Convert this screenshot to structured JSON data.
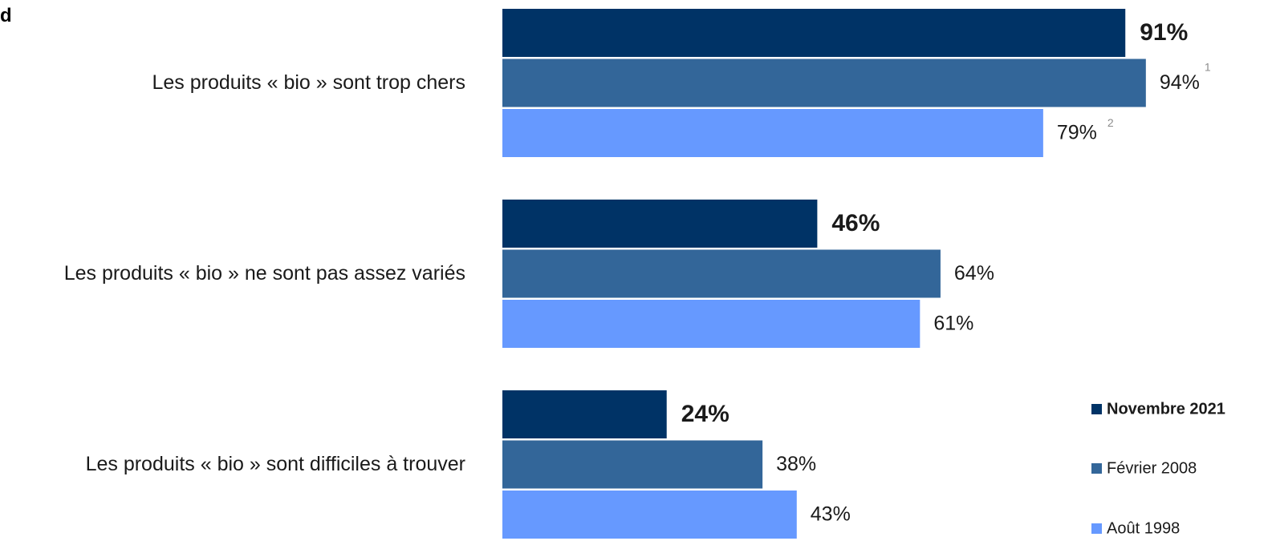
{
  "corner_text": "d",
  "colors": {
    "series": [
      "#003366",
      "#336699",
      "#6699ff"
    ],
    "bold_label": "#0d2d6b"
  },
  "chart_data": {
    "type": "bar",
    "orientation": "horizontal",
    "categories": [
      "Les produits « bio » sont trop chers",
      "Les produits « bio » ne sont pas assez variés",
      "Les produits « bio » sont difficiles à trouver"
    ],
    "series": [
      {
        "name": "Novembre 2021",
        "values": [
          91,
          46,
          24
        ],
        "labels": [
          "91%",
          "46%",
          "24%"
        ],
        "highlight": true
      },
      {
        "name": "Février 2008",
        "values": [
          94,
          64,
          38
        ],
        "labels": [
          "94%",
          "64%",
          "38%"
        ],
        "highlight": false
      },
      {
        "name": "Août 1998",
        "values": [
          79,
          61,
          43
        ],
        "labels": [
          "79%",
          "61%",
          "43%"
        ],
        "highlight": false
      }
    ],
    "footnotes": [
      {
        "category": 0,
        "series": 1,
        "text": "1"
      },
      {
        "category": 0,
        "series": 2,
        "text": "2"
      }
    ],
    "xlim": [
      0,
      100
    ],
    "grid": false,
    "legend": "bottom-right",
    "title": "",
    "xlabel": "",
    "ylabel": ""
  }
}
